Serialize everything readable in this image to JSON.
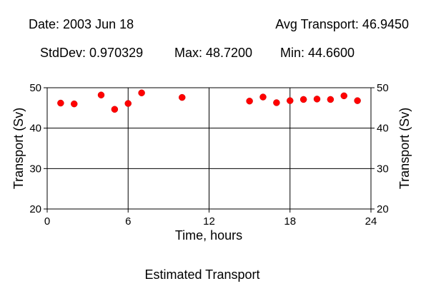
{
  "header": {
    "date": "Date: 2003 Jun 18",
    "avg": "Avg Transport: 46.9450",
    "stddev": "StdDev: 0.970329",
    "max": "Max: 48.7200",
    "min": "Min: 44.6600"
  },
  "chart_data": {
    "type": "scatter",
    "title": "Estimated Transport",
    "xlabel": "Time, hours",
    "ylabel": "Transport (Sv)",
    "ylabel_right": "Transport (Sv)",
    "xlim": [
      0,
      24
    ],
    "ylim": [
      20,
      50
    ],
    "xticks": [
      0,
      6,
      12,
      18,
      24
    ],
    "yticks": [
      20,
      30,
      40,
      50
    ],
    "grid": true,
    "marker_color": "#ff0000",
    "points": [
      {
        "x": 1,
        "y": 46.2
      },
      {
        "x": 2,
        "y": 46.0
      },
      {
        "x": 4,
        "y": 48.2
      },
      {
        "x": 5,
        "y": 44.66
      },
      {
        "x": 6,
        "y": 46.1
      },
      {
        "x": 7,
        "y": 48.72
      },
      {
        "x": 10,
        "y": 47.6
      },
      {
        "x": 15,
        "y": 46.7
      },
      {
        "x": 16,
        "y": 47.7
      },
      {
        "x": 17,
        "y": 46.3
      },
      {
        "x": 18,
        "y": 46.8
      },
      {
        "x": 19,
        "y": 47.1
      },
      {
        "x": 20,
        "y": 47.2
      },
      {
        "x": 21,
        "y": 47.1
      },
      {
        "x": 22,
        "y": 48.0
      },
      {
        "x": 23,
        "y": 46.8
      }
    ]
  }
}
